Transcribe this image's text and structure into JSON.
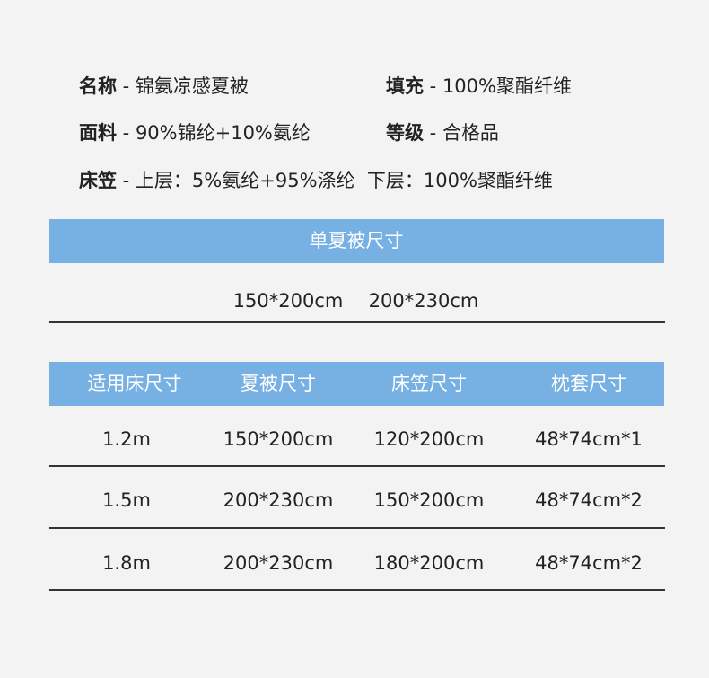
{
  "specs": [
    {
      "label": "名称",
      "value": "锦氨凉感夏被"
    },
    {
      "label": "填充",
      "value": "100%聚酯纤维"
    },
    {
      "label": "面料",
      "value": "90%锦纶+10%氨纶"
    },
    {
      "label": "等级",
      "value": "合格品"
    },
    {
      "label": "床笠",
      "value": "上层：5%氨纶+95%涤纶  下层：100%聚酯纤维"
    }
  ],
  "single": {
    "title": "单夏被尺寸",
    "sizes": [
      "150*200cm",
      "200*230cm"
    ]
  },
  "table": {
    "headers": [
      "适用床尺寸",
      "夏被尺寸",
      "床笠尺寸",
      "枕套尺寸"
    ],
    "rows": [
      [
        "1.2m",
        "150*200cm",
        "120*200cm",
        "48*74cm*1"
      ],
      [
        "1.5m",
        "200*230cm",
        "150*200cm",
        "48*74cm*2"
      ],
      [
        "1.8m",
        "200*230cm",
        "180*200cm",
        "48*74cm*2"
      ]
    ]
  },
  "colors": {
    "accent": "#77b0e2",
    "background": "#f3f3f3"
  }
}
